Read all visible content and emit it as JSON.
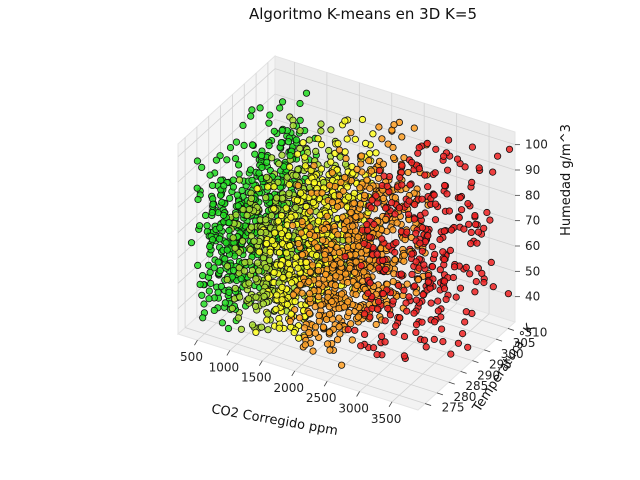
{
  "chart_data": {
    "type": "scatter",
    "projection": "3d",
    "title": "Algoritmo K-means en 3D K=5",
    "xlabel": "CO2 Corregido ppm",
    "ylabel": "Temperatura °K",
    "zlabel": "Humedad g/m^3",
    "xlim": [
      200,
      3900
    ],
    "ylim": [
      272,
      313
    ],
    "zlim": [
      30,
      105
    ],
    "xticks": [
      500,
      1000,
      1500,
      2000,
      2500,
      3000,
      3500
    ],
    "yticks": [
      275,
      280,
      285,
      290,
      295,
      300,
      305,
      310
    ],
    "zticks": [
      40,
      50,
      60,
      70,
      80,
      90,
      100
    ],
    "grid": true,
    "series": [
      {
        "color": "#22dd22",
        "x_range": [
          300,
          900
        ],
        "y_range": [
          274,
          312
        ],
        "z_range": [
          35,
          100
        ],
        "point_count": 520,
        "density": "dense"
      },
      {
        "color": "#aadd33",
        "x_range": [
          800,
          1500
        ],
        "y_range": [
          274,
          312
        ],
        "z_range": [
          35,
          100
        ],
        "point_count": 420,
        "density": "dense"
      },
      {
        "color": "#ffff22",
        "x_range": [
          1300,
          1900
        ],
        "y_range": [
          274,
          312
        ],
        "z_range": [
          35,
          100
        ],
        "point_count": 480,
        "density": "dense"
      },
      {
        "color": "#ffa024",
        "x_range": [
          1800,
          2700
        ],
        "y_range": [
          274,
          312
        ],
        "z_range": [
          35,
          100
        ],
        "point_count": 620,
        "density": "dense"
      },
      {
        "color": "#ee2222",
        "x_range": [
          2600,
          3900
        ],
        "y_range": [
          274,
          312
        ],
        "z_range": [
          35,
          100
        ],
        "point_count": 320,
        "density": "sparse"
      }
    ]
  }
}
